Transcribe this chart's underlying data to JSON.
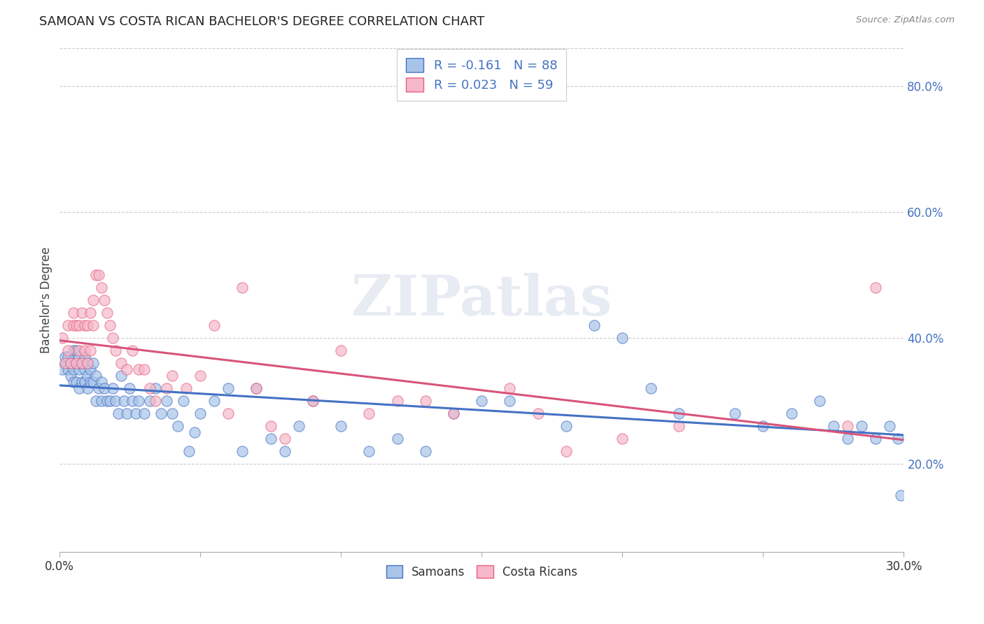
{
  "title": "SAMOAN VS COSTA RICAN BACHELOR'S DEGREE CORRELATION CHART",
  "source": "Source: ZipAtlas.com",
  "ylabel": "Bachelor's Degree",
  "xlim": [
    0.0,
    0.3
  ],
  "ylim": [
    0.06,
    0.86
  ],
  "yticks": [
    0.2,
    0.4,
    0.6,
    0.8
  ],
  "ytick_labels": [
    "20.0%",
    "40.0%",
    "60.0%",
    "80.0%"
  ],
  "samoan_color": "#a8c4e8",
  "costarican_color": "#f5b8cb",
  "samoan_edge_color": "#4472c4",
  "costarican_edge_color": "#e8607a",
  "samoan_line_color": "#4472c4",
  "costarican_line_color": "#d9547a",
  "watermark": "ZIPatlas",
  "legend_label_samoan": "R = -0.161   N = 88",
  "legend_label_cr": "R = 0.023   N = 59",
  "samoan_x": [
    0.001,
    0.002,
    0.002,
    0.003,
    0.003,
    0.004,
    0.004,
    0.005,
    0.005,
    0.005,
    0.006,
    0.006,
    0.006,
    0.007,
    0.007,
    0.007,
    0.008,
    0.008,
    0.009,
    0.009,
    0.009,
    0.01,
    0.01,
    0.01,
    0.011,
    0.011,
    0.012,
    0.012,
    0.013,
    0.013,
    0.014,
    0.015,
    0.015,
    0.016,
    0.017,
    0.018,
    0.019,
    0.02,
    0.021,
    0.022,
    0.023,
    0.024,
    0.025,
    0.026,
    0.027,
    0.028,
    0.03,
    0.032,
    0.034,
    0.036,
    0.038,
    0.04,
    0.042,
    0.044,
    0.046,
    0.048,
    0.05,
    0.055,
    0.06,
    0.065,
    0.07,
    0.075,
    0.08,
    0.085,
    0.09,
    0.1,
    0.11,
    0.12,
    0.13,
    0.14,
    0.15,
    0.16,
    0.18,
    0.19,
    0.2,
    0.21,
    0.22,
    0.24,
    0.25,
    0.26,
    0.27,
    0.275,
    0.28,
    0.285,
    0.29,
    0.295,
    0.298,
    0.299
  ],
  "samoan_y": [
    0.35,
    0.36,
    0.37,
    0.35,
    0.37,
    0.34,
    0.36,
    0.33,
    0.35,
    0.38,
    0.33,
    0.36,
    0.38,
    0.32,
    0.35,
    0.37,
    0.33,
    0.36,
    0.33,
    0.35,
    0.37,
    0.32,
    0.34,
    0.36,
    0.33,
    0.35,
    0.33,
    0.36,
    0.3,
    0.34,
    0.32,
    0.3,
    0.33,
    0.32,
    0.3,
    0.3,
    0.32,
    0.3,
    0.28,
    0.34,
    0.3,
    0.28,
    0.32,
    0.3,
    0.28,
    0.3,
    0.28,
    0.3,
    0.32,
    0.28,
    0.3,
    0.28,
    0.26,
    0.3,
    0.22,
    0.25,
    0.28,
    0.3,
    0.32,
    0.22,
    0.32,
    0.24,
    0.22,
    0.26,
    0.3,
    0.26,
    0.22,
    0.24,
    0.22,
    0.28,
    0.3,
    0.3,
    0.26,
    0.42,
    0.4,
    0.32,
    0.28,
    0.28,
    0.26,
    0.28,
    0.3,
    0.26,
    0.24,
    0.26,
    0.24,
    0.26,
    0.24,
    0.15
  ],
  "costarican_x": [
    0.001,
    0.002,
    0.003,
    0.003,
    0.004,
    0.005,
    0.005,
    0.006,
    0.006,
    0.007,
    0.007,
    0.008,
    0.008,
    0.009,
    0.009,
    0.01,
    0.01,
    0.011,
    0.011,
    0.012,
    0.012,
    0.013,
    0.014,
    0.015,
    0.016,
    0.017,
    0.018,
    0.019,
    0.02,
    0.022,
    0.024,
    0.026,
    0.028,
    0.03,
    0.032,
    0.034,
    0.038,
    0.04,
    0.045,
    0.05,
    0.055,
    0.06,
    0.065,
    0.07,
    0.075,
    0.08,
    0.09,
    0.1,
    0.11,
    0.12,
    0.13,
    0.14,
    0.16,
    0.17,
    0.18,
    0.2,
    0.22,
    0.28,
    0.29
  ],
  "costarican_y": [
    0.4,
    0.36,
    0.38,
    0.42,
    0.36,
    0.42,
    0.44,
    0.36,
    0.42,
    0.38,
    0.42,
    0.36,
    0.44,
    0.38,
    0.42,
    0.36,
    0.42,
    0.38,
    0.44,
    0.42,
    0.46,
    0.5,
    0.5,
    0.48,
    0.46,
    0.44,
    0.42,
    0.4,
    0.38,
    0.36,
    0.35,
    0.38,
    0.35,
    0.35,
    0.32,
    0.3,
    0.32,
    0.34,
    0.32,
    0.34,
    0.42,
    0.28,
    0.48,
    0.32,
    0.26,
    0.24,
    0.3,
    0.38,
    0.28,
    0.3,
    0.3,
    0.28,
    0.32,
    0.28,
    0.22,
    0.24,
    0.26,
    0.26,
    0.48
  ]
}
